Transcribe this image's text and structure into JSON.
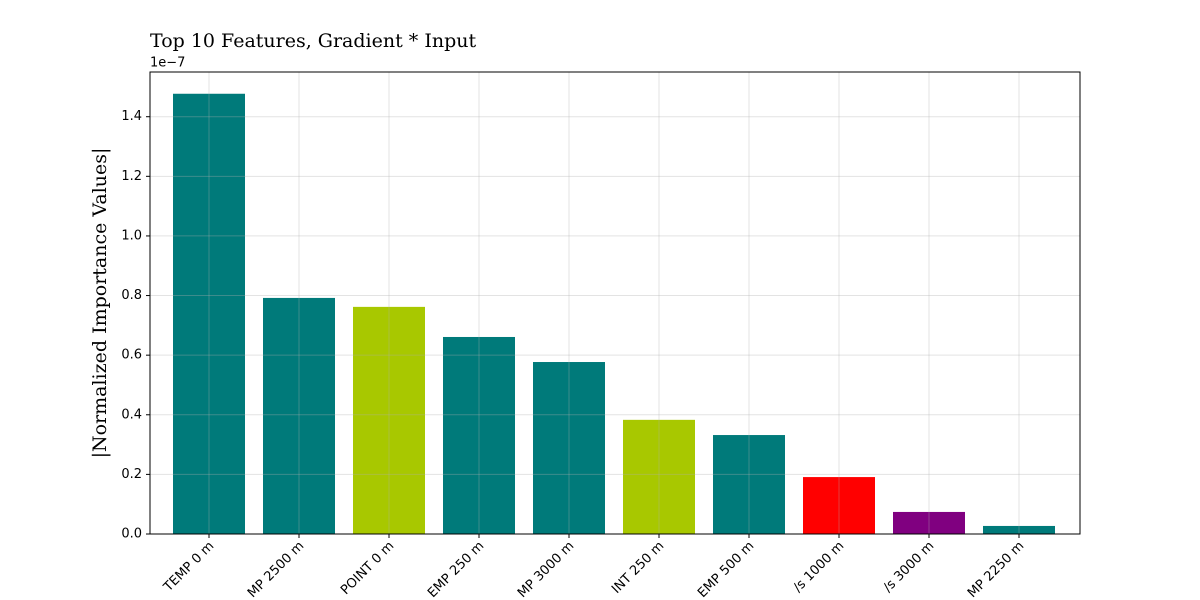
{
  "chart_data": {
    "type": "bar",
    "title": "Top 10 Features, Gradient * Input",
    "y_label": "|Normalized Importance Values|",
    "y_offset_label": "1e−7",
    "categories": [
      "TEMP  0 m",
      "MP  2500 m",
      "POINT  0 m",
      "EMP  250 m",
      "MP  3000 m",
      "INT  250 m",
      "EMP  500 m",
      "/s 1000 m",
      "/s 3000 m",
      "MP  2250 m"
    ],
    "values": [
      1.477,
      0.792,
      0.762,
      0.661,
      0.577,
      0.383,
      0.332,
      0.191,
      0.074,
      0.027
    ],
    "colors": [
      "#007a7a",
      "#007a7a",
      "#a8c800",
      "#007a7a",
      "#007a7a",
      "#a8c800",
      "#007a7a",
      "#ff0000",
      "#800080",
      "#007a7a"
    ],
    "ylim": [
      0,
      1.55
    ],
    "yticks": [
      {
        "value": 0,
        "label": "0.0"
      },
      0.2,
      0.4,
      0.6,
      0.8,
      {
        "value": 1,
        "label": "1.0"
      },
      1.2,
      1.4
    ],
    "grid": true
  }
}
